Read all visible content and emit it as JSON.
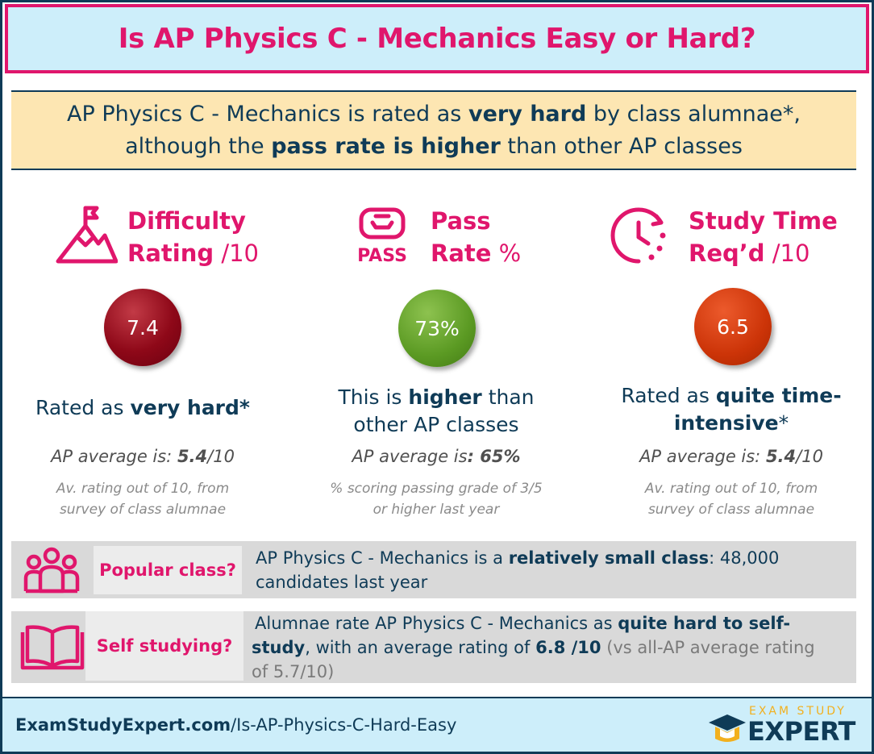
{
  "title": "Is AP Physics C - Mechanics Easy or Hard?",
  "summary": {
    "line1_a": "AP Physics C - Mechanics is rated as ",
    "line1_b": "very hard",
    "line1_c": " by class alumnae*,",
    "line2_a": "although the ",
    "line2_b": "pass rate is higher",
    "line2_c": " than other AP classes"
  },
  "difficulty": {
    "icon": "mountain-flag-icon",
    "title_bold1": "Difficulty",
    "title_bold2": "Rating",
    "title_suffix": " /10",
    "value": "7.4",
    "desc_a": "Rated as ",
    "desc_b": "very hard*",
    "avg_label": "AP average is: ",
    "avg_value": "5.4",
    "avg_suffix": "/10",
    "note_line1": "Av. rating out of 10, from",
    "note_line2": "survey of class alumnae",
    "color": "#8e0818"
  },
  "pass": {
    "icon": "pass-icon",
    "icon_text": "PASS",
    "title_bold1": "Pass",
    "title_bold2": "Rate",
    "title_suffix": " %",
    "value": "73%",
    "desc_a": "This is ",
    "desc_b": "higher",
    "desc_c": " than",
    "desc_line2": "other AP classes",
    "avg_label": "AP average is",
    "avg_value": ": 65%",
    "note_line1": "% scoring passing grade of 3/5",
    "note_line2": "or higher last year",
    "color": "#5b9a23"
  },
  "study": {
    "icon": "clock-icon",
    "title_bold1": "Study Time",
    "title_bold2": "Req’d",
    "title_suffix": " /10",
    "value": "6.5",
    "desc_a": "Rated as ",
    "desc_b": "quite time-",
    "desc_c": "intensive",
    "desc_d": "*",
    "avg_label": "AP average is: ",
    "avg_value": "5.4",
    "avg_suffix": "/10",
    "note_line1": "Av. rating out of 10, from",
    "note_line2": "survey of class alumnae",
    "color": "#cc3408"
  },
  "popular": {
    "icon": "people-icon",
    "label": "Popular class?",
    "text_a": "AP Physics C - Mechanics is a ",
    "text_b": "relatively small class",
    "text_c": ": 48,000",
    "text_line2": "candidates last year"
  },
  "self_study": {
    "icon": "book-icon",
    "label": "Self studying?",
    "text_a": "Alumnae rate AP Physics C - Mechanics as ",
    "text_b": "quite hard to self-",
    "text_c": "study",
    "text_d": ", with an average rating of ",
    "text_e": "6.8 /10",
    "text_f": " (vs all-AP average rating",
    "text_line3": "of 5.7/10)"
  },
  "footer": {
    "url_bold": "ExamStudyExpert.com",
    "url_rest": "/Is-AP-Physics-C-Hard-Easy",
    "logo_small": "EXAM STUDY",
    "logo_big": "EXPERT"
  },
  "colors": {
    "accent": "#e0166c",
    "navy": "#0f3b57",
    "header_bg": "#cdeefa",
    "summary_bg": "#fde6b2",
    "gold": "#f2b01e"
  }
}
